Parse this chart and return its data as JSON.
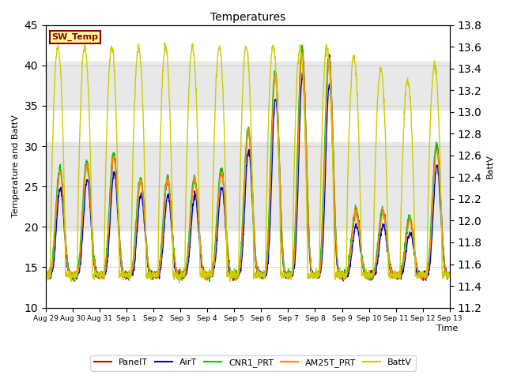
{
  "title": "Temperatures",
  "ylabel_left": "Temperature and BattV",
  "ylabel_right": "BattV",
  "xlabel": "Time",
  "ylim_left": [
    10,
    45
  ],
  "ylim_right": [
    11.2,
    13.8
  ],
  "yticks_left": [
    10,
    15,
    20,
    25,
    30,
    35,
    40,
    45
  ],
  "yticks_right": [
    11.2,
    11.4,
    11.6,
    11.8,
    12.0,
    12.2,
    12.4,
    12.6,
    12.8,
    13.0,
    13.2,
    13.4,
    13.6,
    13.8
  ],
  "xtick_labels": [
    "Aug 29",
    "Aug 30",
    "Aug 31",
    "Sep 1",
    "Sep 2",
    "Sep 3",
    "Sep 4",
    "Sep 5",
    "Sep 6",
    "Sep 7",
    "Sep 8",
    "Sep 9",
    "Sep 10",
    "Sep 11",
    "Sep 12",
    "Sep 13"
  ],
  "sw_temp_label": "SW_Temp",
  "sw_temp_color": "#8B0000",
  "sw_temp_bg": "#FFFF99",
  "sw_temp_border": "#8B0000",
  "legend_entries": [
    "PanelT",
    "AirT",
    "CNR1_PRT",
    "AM25T_PRT",
    "BattV"
  ],
  "line_colors": [
    "#CC0000",
    "#0000CC",
    "#00CC00",
    "#FF8800",
    "#CCCC00"
  ],
  "line_widths": [
    1.0,
    1.0,
    1.0,
    1.0,
    1.0
  ],
  "background_color": "#FFFFFF",
  "plot_bg_color": "#FFFFFF",
  "band_color": "#E8E8E8",
  "band_ranges": [
    [
      19.5,
      30.5
    ],
    [
      34.5,
      40.5
    ]
  ],
  "n_days": 15,
  "pts_per_day": 96,
  "figsize": [
    6.4,
    4.8
  ],
  "dpi": 100
}
